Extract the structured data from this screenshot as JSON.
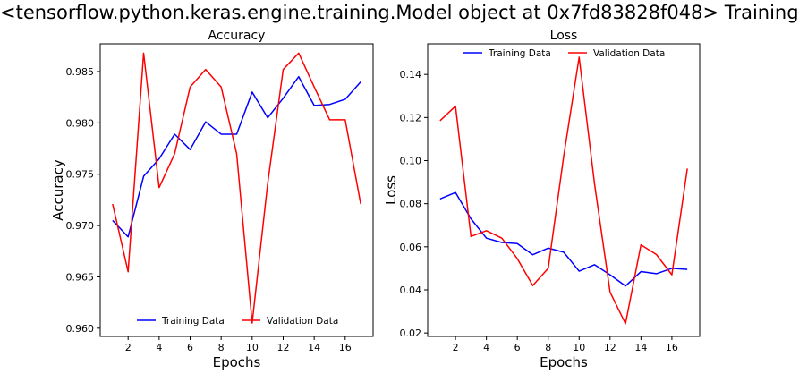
{
  "figure": {
    "title": "<tensorflow.python.keras.engine.training.Model object at 0x7fd83828f048> Training"
  },
  "colors": {
    "training": "#0000ff",
    "validation": "#ff0000",
    "axis": "#000000"
  },
  "chart_data": [
    {
      "type": "line",
      "title": "Accuracy",
      "xlabel": "Epochs",
      "ylabel": "Accuracy",
      "x": [
        1,
        2,
        3,
        4,
        5,
        6,
        7,
        8,
        9,
        10,
        11,
        12,
        13,
        14,
        15,
        16,
        17
      ],
      "xlim": [
        0.2,
        17.8
      ],
      "ylim": [
        0.9592,
        0.9877
      ],
      "xticks": [
        2,
        4,
        6,
        8,
        10,
        12,
        14,
        16
      ],
      "yticks": [
        0.96,
        0.965,
        0.97,
        0.975,
        0.98,
        0.985
      ],
      "ytick_labels": [
        "0.960",
        "0.965",
        "0.970",
        "0.975",
        "0.980",
        "0.985"
      ],
      "legend": "lower center",
      "grid": false,
      "series": [
        {
          "name": "Training Data",
          "color": "#0000ff",
          "values": [
            0.9705,
            0.9689,
            0.9748,
            0.9765,
            0.9789,
            0.9774,
            0.9801,
            0.9789,
            0.9789,
            0.983,
            0.9805,
            0.9824,
            0.9845,
            0.9817,
            0.9818,
            0.9823,
            0.984
          ]
        },
        {
          "name": "Validation Data",
          "color": "#ff0000",
          "values": [
            0.9721,
            0.9655,
            0.9868,
            0.9737,
            0.977,
            0.9835,
            0.9852,
            0.9835,
            0.977,
            0.9605,
            0.9741,
            0.9852,
            0.9868,
            0.9835,
            0.9803,
            0.9803,
            0.9721
          ]
        }
      ]
    },
    {
      "type": "line",
      "title": "Loss",
      "xlabel": "Epochs",
      "ylabel": "Loss",
      "x": [
        1,
        2,
        3,
        4,
        5,
        6,
        7,
        8,
        9,
        10,
        11,
        12,
        13,
        14,
        15,
        16,
        17
      ],
      "xlim": [
        0.2,
        17.8
      ],
      "ylim": [
        0.0184,
        0.1542
      ],
      "xticks": [
        2,
        4,
        6,
        8,
        10,
        12,
        14,
        16
      ],
      "yticks": [
        0.02,
        0.04,
        0.06,
        0.08,
        0.1,
        0.12,
        0.14
      ],
      "ytick_labels": [
        "0.02",
        "0.04",
        "0.06",
        "0.08",
        "0.10",
        "0.12",
        "0.14"
      ],
      "legend": "upper center",
      "grid": false,
      "series": [
        {
          "name": "Training Data",
          "color": "#0000ff",
          "values": [
            0.0822,
            0.0852,
            0.073,
            0.064,
            0.062,
            0.0615,
            0.0563,
            0.0594,
            0.0575,
            0.0487,
            0.0517,
            0.047,
            0.0418,
            0.0485,
            0.0475,
            0.05,
            0.0495
          ]
        },
        {
          "name": "Validation Data",
          "color": "#ff0000",
          "values": [
            0.1185,
            0.1253,
            0.0648,
            0.0675,
            0.064,
            0.0545,
            0.042,
            0.05,
            0.102,
            0.148,
            0.089,
            0.039,
            0.0243,
            0.0609,
            0.0564,
            0.047,
            0.0963
          ]
        }
      ]
    }
  ]
}
